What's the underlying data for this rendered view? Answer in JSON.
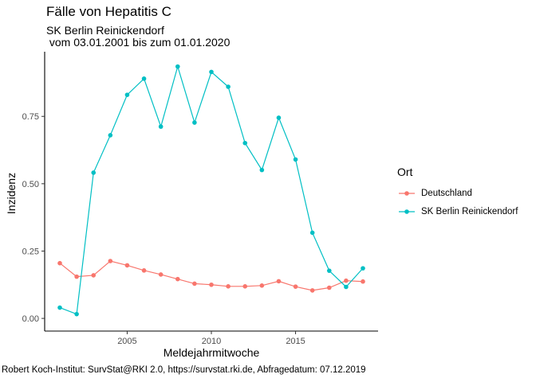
{
  "chart_data": {
    "type": "line",
    "title": "Fälle von Hepatitis C",
    "subtitle": "SK Berlin Reinickendorf\n vom 03.01.2001 bis zum 01.01.2020",
    "xlabel": "Meldejahrmitwoche",
    "ylabel": "Inzidenz",
    "caption": "Robert Koch-Institut: SurvStat@RKI 2.0, https://survstat.rki.de, Abfragedatum: 07.12.2019",
    "xlim": [
      2000.1,
      2019.9
    ],
    "ylim": [
      -0.047,
      0.99
    ],
    "x_ticks": [
      2005,
      2010,
      2015
    ],
    "y_ticks": [
      0.0,
      0.25,
      0.5,
      0.75
    ],
    "y_tick_labels": [
      "0.00",
      "0.25",
      "0.50",
      "0.75"
    ],
    "x": [
      2001,
      2002,
      2003,
      2004,
      2005,
      2006,
      2007,
      2008,
      2009,
      2010,
      2011,
      2012,
      2013,
      2014,
      2015,
      2016,
      2017,
      2018,
      2019
    ],
    "legend_title": "Ort",
    "legend_position": "right",
    "series": [
      {
        "name": "Deutschland",
        "color": "#F8766D",
        "values": [
          0.205,
          0.155,
          0.16,
          0.213,
          0.197,
          0.178,
          0.163,
          0.146,
          0.129,
          0.125,
          0.119,
          0.119,
          0.122,
          0.138,
          0.118,
          0.104,
          0.114,
          0.14,
          0.137
        ]
      },
      {
        "name": "SK Berlin Reinickendorf",
        "color": "#00BFC4",
        "values": [
          0.04,
          0.016,
          0.541,
          0.68,
          0.83,
          0.89,
          0.712,
          0.935,
          0.727,
          0.915,
          0.86,
          0.651,
          0.551,
          0.745,
          0.59,
          0.318,
          0.177,
          0.117,
          0.186
        ]
      }
    ]
  }
}
